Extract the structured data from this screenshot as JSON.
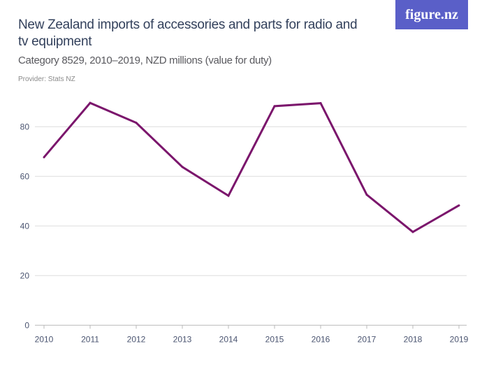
{
  "header": {
    "title": "New Zealand imports of accessories and parts for radio and tv equipment",
    "subtitle": "Category 8529, 2010–2019, NZD millions (value for duty)",
    "provider": "Provider: Stats NZ",
    "logo": "figure.nz"
  },
  "chart_data": {
    "type": "line",
    "title": "New Zealand imports of accessories and parts for radio and tv equipment",
    "subtitle": "Category 8529, 2010–2019, NZD millions (value for duty)",
    "x": [
      "2010",
      "2011",
      "2012",
      "2013",
      "2014",
      "2015",
      "2016",
      "2017",
      "2018",
      "2019"
    ],
    "series": [
      {
        "values": [
          67.7,
          89.6,
          81.6,
          63.8,
          52.2,
          88.3,
          89.5,
          52.6,
          37.6,
          48.3
        ],
        "color": "#7b166c"
      }
    ],
    "yticks": [
      0,
      20,
      40,
      60,
      80
    ],
    "ylim": [
      0,
      90
    ],
    "grid": true,
    "xlabel": "",
    "ylabel": ""
  }
}
